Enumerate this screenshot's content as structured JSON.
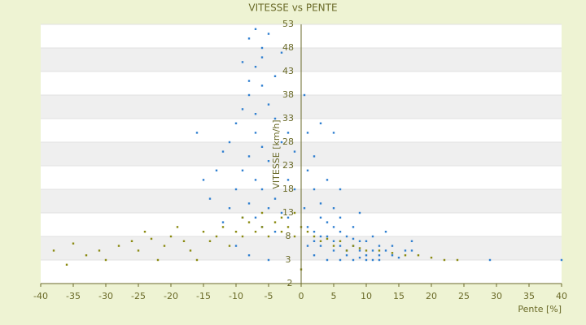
{
  "chart_data": {
    "type": "scatter",
    "title": "VITESSE vs PENTE",
    "x_label": "Pente [%]",
    "y_label": "VITESSE [km/h]",
    "xlim": [
      -40,
      40
    ],
    "xticks": [
      -40,
      -35,
      -30,
      -25,
      -20,
      -15,
      -10,
      -5,
      0,
      5,
      10,
      15,
      20,
      25,
      30,
      35,
      40
    ],
    "ylim": [
      -2,
      53
    ],
    "yticks": [
      -2,
      3,
      8,
      13,
      18,
      23,
      28,
      33,
      38,
      43,
      48,
      53
    ],
    "grid": true,
    "series": [
      {
        "color": "#2f7fd0",
        "x": [
          -8,
          -7,
          -6,
          -9,
          -5,
          -7,
          -6,
          -8,
          -4,
          -9,
          -10,
          -5,
          -7,
          -3,
          -6,
          -8,
          -11,
          -4,
          -9,
          -7,
          -5,
          -12,
          -3,
          -6,
          -10,
          -2,
          -8,
          -4,
          -13,
          -1,
          -7,
          -5,
          -2,
          -3,
          -9,
          -1,
          -6,
          -11,
          -4,
          -2,
          -8,
          -5,
          -14,
          -16,
          -15,
          -12,
          -10,
          -7,
          -6,
          -8,
          1,
          2,
          0.5,
          3,
          1,
          2,
          4,
          3,
          5,
          6,
          7,
          8,
          9,
          10,
          11,
          12,
          13,
          14,
          15,
          4,
          5,
          6,
          7,
          8,
          9,
          10,
          12,
          14,
          16,
          17,
          3,
          5,
          6,
          8,
          2,
          4,
          1,
          3,
          6,
          9,
          11,
          13,
          2,
          4,
          6,
          8,
          10,
          12,
          1,
          2,
          3,
          5,
          7,
          9,
          11,
          29,
          40,
          17,
          5,
          0.5
        ],
        "y": [
          50,
          52,
          48,
          45,
          51,
          44,
          40,
          38,
          42,
          35,
          32,
          36,
          30,
          47,
          27,
          25,
          28,
          33,
          22,
          20,
          24,
          26,
          28,
          18,
          18,
          30,
          15,
          16,
          22,
          26,
          12,
          14,
          20,
          13,
          12,
          18,
          10,
          14,
          9,
          12,
          4,
          3,
          16,
          30,
          20,
          11,
          6,
          34,
          46,
          41,
          22,
          18,
          14,
          12,
          10,
          9,
          8,
          6,
          7,
          6,
          5,
          6,
          5,
          4,
          5,
          4,
          5,
          4,
          3.5,
          11,
          10,
          9,
          8,
          7.5,
          7,
          7,
          6,
          6,
          5,
          7,
          15,
          14,
          12,
          10,
          25,
          20,
          30,
          32,
          18,
          13,
          8,
          9,
          4,
          3,
          3,
          3,
          3,
          3,
          6,
          7,
          8,
          5,
          4,
          3.5,
          3,
          3,
          3,
          5,
          30,
          38
        ]
      },
      {
        "color": "#8a8a10",
        "x": [
          -38,
          -35,
          -33,
          -31,
          -28,
          -26,
          -25,
          -23,
          -21,
          -20,
          -18,
          -17,
          -15,
          -14,
          -13,
          -12,
          -11,
          -10,
          -9,
          -8,
          -7,
          -6,
          -5,
          -4,
          -3,
          -2,
          -1,
          0,
          1,
          2,
          3,
          4,
          5,
          6,
          7,
          8,
          9,
          10,
          12,
          14,
          16,
          18,
          20,
          22,
          24,
          -30,
          -22,
          -16,
          -24,
          -19,
          -9,
          -6,
          -3,
          0,
          -1,
          -36
        ],
        "y": [
          5,
          6.5,
          4,
          5,
          6,
          7,
          5,
          7.5,
          6,
          8,
          7,
          5,
          9,
          7,
          8,
          10,
          6,
          9,
          8,
          11,
          9,
          10,
          8,
          11,
          9,
          10,
          8,
          10,
          9,
          8,
          7,
          7.5,
          6,
          7,
          5,
          6,
          5.5,
          5,
          5,
          4.5,
          4,
          4,
          3.5,
          3,
          3,
          3,
          3,
          3,
          9,
          10,
          12,
          13,
          12,
          1,
          13,
          2
        ]
      }
    ]
  }
}
